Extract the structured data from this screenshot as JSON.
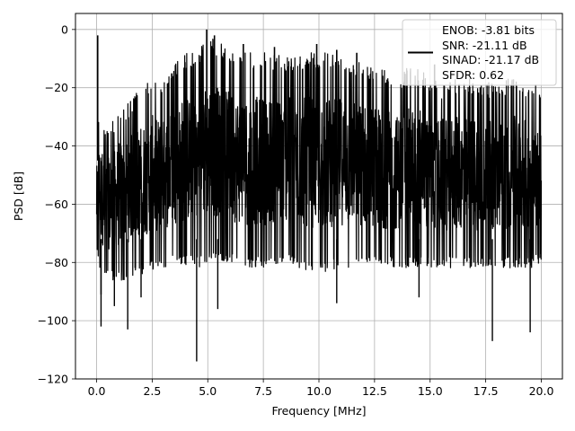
{
  "chart_data": {
    "type": "line",
    "title": "",
    "xlabel": "Frequency [MHz]",
    "ylabel": "PSD [dB]",
    "xlim": [
      -0.95,
      20.95
    ],
    "ylim": [
      -120,
      5.5
    ],
    "xticks": [
      0.0,
      2.5,
      5.0,
      7.5,
      10.0,
      12.5,
      15.0,
      17.5,
      20.0
    ],
    "xtick_labels": [
      "0.0",
      "2.5",
      "5.0",
      "7.5",
      "10.0",
      "12.5",
      "15.0",
      "17.5",
      "20.0"
    ],
    "yticks": [
      0,
      -20,
      -40,
      -60,
      -80,
      -100,
      -120
    ],
    "ytick_labels": [
      "0",
      "−20",
      "−40",
      "−60",
      "−80",
      "−100",
      "−120"
    ],
    "grid": true,
    "legend_position": "top-right",
    "legend_lines": [
      "ENOB: -3.81 bits",
      "SNR: -21.11 dB",
      "SINAD: -21.17 dB",
      "SFDR: 0.62"
    ],
    "series": [
      {
        "color": "#000000",
        "spectrum_envelope": {
          "x": [
            0.0,
            0.1,
            0.25,
            0.5,
            1.0,
            1.5,
            2.0,
            2.5,
            3.0,
            3.5,
            4.0,
            4.5,
            5.0,
            5.5,
            6.0,
            6.5,
            7.0,
            7.5,
            8.0,
            8.5,
            9.0,
            9.5,
            10.0,
            10.5,
            11.0,
            11.5,
            12.0,
            12.5,
            13.0,
            13.5,
            14.0,
            14.5,
            15.0,
            15.5,
            16.0,
            16.5,
            17.0,
            17.5,
            18.0,
            18.5,
            19.0,
            19.5,
            20.0
          ],
          "max": [
            -40,
            -28,
            -30,
            -34,
            -27,
            -24,
            -20,
            -16,
            -18,
            -12,
            -8,
            -8,
            -2,
            -4,
            -7,
            -8,
            -8,
            -8,
            -8,
            -9,
            -9,
            -8,
            -8,
            -8,
            -8,
            -10,
            -11,
            -12,
            -14,
            -16,
            -13,
            -12,
            -17,
            -18,
            -17,
            -17,
            -16,
            -18,
            -19,
            -16,
            -17,
            -18,
            -20
          ],
          "min": [
            -78,
            -82,
            -85,
            -86,
            -87,
            -85,
            -84,
            -83,
            -82,
            -80,
            -81,
            -82,
            -80,
            -79,
            -80,
            -82,
            -82,
            -82,
            -82,
            -80,
            -82,
            -83,
            -84,
            -83,
            -82,
            -82,
            -82,
            -82,
            -82,
            -82,
            -82,
            -82,
            -82,
            -82,
            -82,
            -82,
            -82,
            -82,
            -82,
            -82,
            -82,
            -82,
            -80
          ]
        },
        "spikes": [
          {
            "x": 0.05,
            "y": -2
          },
          {
            "x": 4.95,
            "y": 0
          },
          {
            "x": 5.3,
            "y": -2
          },
          {
            "x": 6.6,
            "y": -5
          },
          {
            "x": 8.0,
            "y": -6
          },
          {
            "x": 9.9,
            "y": -5
          },
          {
            "x": 10.8,
            "y": -7
          },
          {
            "x": 11.7,
            "y": -8
          },
          {
            "x": 15.2,
            "y": -12
          }
        ],
        "dips": [
          {
            "x": 0.2,
            "y": -91
          },
          {
            "x": 0.2,
            "y": -102
          },
          {
            "x": 0.8,
            "y": -95
          },
          {
            "x": 1.4,
            "y": -103
          },
          {
            "x": 2.0,
            "y": -92
          },
          {
            "x": 4.5,
            "y": -114
          },
          {
            "x": 5.45,
            "y": -96
          },
          {
            "x": 10.8,
            "y": -94
          },
          {
            "x": 14.5,
            "y": -92
          },
          {
            "x": 17.8,
            "y": -107
          },
          {
            "x": 19.5,
            "y": -104
          }
        ]
      }
    ]
  }
}
